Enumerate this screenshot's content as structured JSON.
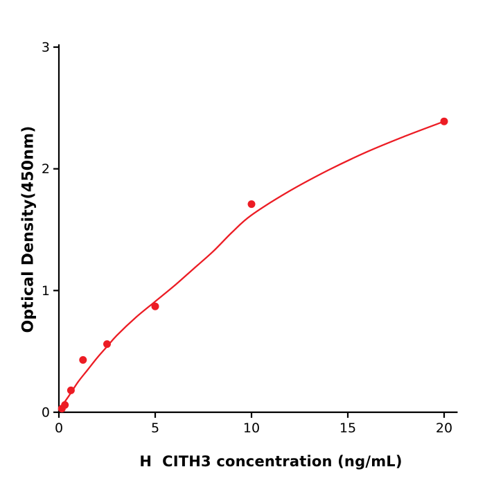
{
  "figure": {
    "background": "#ffffff",
    "axis_color": "#000000"
  },
  "chart_data": {
    "type": "scatter",
    "title": "",
    "xlabel": "H  CITH3 concentration (ng/mL)",
    "ylabel": "Optical Density(450nm)",
    "xlim": [
      0,
      20.7
    ],
    "ylim": [
      0,
      3
    ],
    "xticks": [
      0,
      5,
      10,
      15,
      20
    ],
    "yticks": [
      0,
      1,
      2,
      3
    ],
    "grid": false,
    "legend": "none",
    "accent_color": "#ec1c24",
    "series": [
      {
        "name": "fit-curve",
        "type": "line",
        "color": "#ec1c24",
        "points": [
          [
            0,
            0.02
          ],
          [
            0.5,
            0.13
          ],
          [
            1,
            0.25
          ],
          [
            1.5,
            0.35
          ],
          [
            2,
            0.45
          ],
          [
            2.5,
            0.54
          ],
          [
            3,
            0.63
          ],
          [
            4,
            0.78
          ],
          [
            5,
            0.91
          ],
          [
            6,
            1.04
          ],
          [
            7,
            1.18
          ],
          [
            8,
            1.32
          ],
          [
            9,
            1.48
          ],
          [
            10,
            1.62
          ],
          [
            12,
            1.82
          ],
          [
            14,
            1.99
          ],
          [
            16,
            2.14
          ],
          [
            18,
            2.27
          ],
          [
            20,
            2.39
          ]
        ]
      },
      {
        "name": "standard-points",
        "type": "scatter",
        "color": "#ec1c24",
        "points": [
          [
            0.156,
            0.03
          ],
          [
            0.3125,
            0.06
          ],
          [
            0.625,
            0.18
          ],
          [
            1.25,
            0.43
          ],
          [
            2.5,
            0.56
          ],
          [
            5,
            0.87
          ],
          [
            10,
            1.71
          ],
          [
            20,
            2.39
          ]
        ]
      }
    ]
  }
}
